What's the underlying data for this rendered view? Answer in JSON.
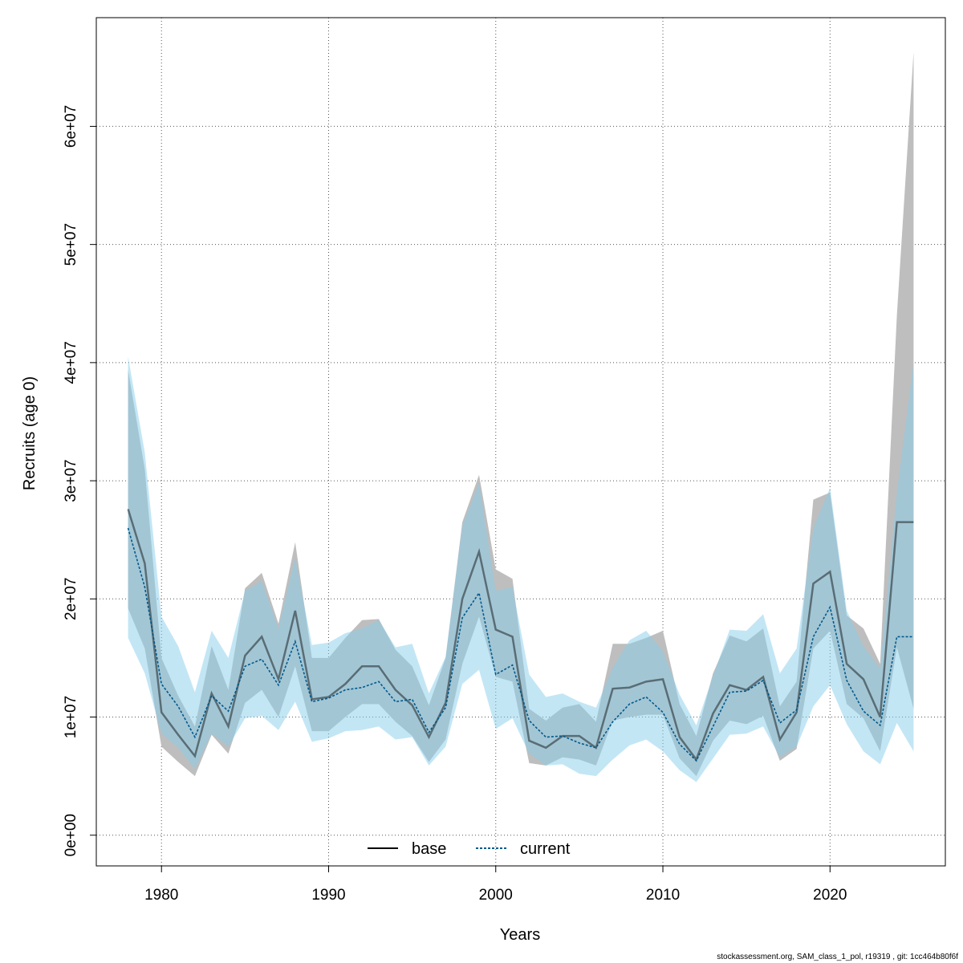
{
  "chart_data": {
    "type": "line",
    "xlabel": "Years",
    "ylabel": "Recruits (age 0)",
    "xlim": [
      1974.1,
      1977.9
    ],
    "xlim_note": "",
    "x_range": [
      1976.1,
      2026.9
    ],
    "y_range": [
      -2600000,
      69200000
    ],
    "x_ticks": [
      1980,
      1990,
      2000,
      2010,
      2020
    ],
    "y_ticks": [
      0,
      10000000,
      20000000,
      30000000,
      40000000,
      50000000,
      60000000
    ],
    "y_tick_labels": [
      "0e+00",
      "1e+07",
      "2e+07",
      "3e+07",
      "4e+07",
      "5e+07",
      "6e+07"
    ],
    "grid": true,
    "legend_position": "bottom",
    "x": [
      1978,
      1979,
      1980,
      1981,
      1982,
      1983,
      1984,
      1985,
      1986,
      1987,
      1988,
      1989,
      1990,
      1991,
      1992,
      1993,
      1994,
      1995,
      1996,
      1997,
      1998,
      1999,
      2000,
      2001,
      2002,
      2003,
      2004,
      2005,
      2006,
      2007,
      2008,
      2009,
      2010,
      2011,
      2012,
      2013,
      2014,
      2015,
      2016,
      2017,
      2018,
      2019,
      2020,
      2021,
      2022,
      2023,
      2024,
      2025
    ],
    "series": [
      {
        "name": "base",
        "color": "#000000",
        "band_color": "#bebebe",
        "dash": "solid",
        "values": [
          27600000,
          23000000,
          10400000,
          8500000,
          6700000,
          12000000,
          9200000,
          15200000,
          16800000,
          13200000,
          19000000,
          11500000,
          11700000,
          12800000,
          14300000,
          14300000,
          12300000,
          11000000,
          8300000,
          11200000,
          20000000,
          24000000,
          17400000,
          16800000,
          8000000,
          7400000,
          8400000,
          8400000,
          7400000,
          12400000,
          12500000,
          13000000,
          13200000,
          8300000,
          6400000,
          10300000,
          12700000,
          12300000,
          13400000,
          8100000,
          10400000,
          21300000,
          22300000,
          14500000,
          13200000,
          10000000,
          26500000,
          26500000
        ],
        "lower": [
          19200000,
          15800000,
          7500000,
          6200000,
          5000000,
          8500000,
          6900000,
          11200000,
          12300000,
          10000000,
          14300000,
          8800000,
          8800000,
          10000000,
          11100000,
          11100000,
          9600000,
          8400000,
          6200000,
          8100000,
          14500000,
          18500000,
          13400000,
          13000000,
          6100000,
          5900000,
          6600000,
          6400000,
          5900000,
          9700000,
          10000000,
          10200000,
          10200000,
          6500000,
          5000000,
          8000000,
          9700000,
          9400000,
          10100000,
          6300000,
          7300000,
          15800000,
          17300000,
          11100000,
          9900000,
          7100000,
          15900000,
          10700000
        ],
        "upper": [
          39400000,
          31000000,
          15000000,
          11800000,
          9200000,
          16000000,
          12300000,
          20900000,
          22200000,
          17900000,
          24800000,
          15000000,
          15000000,
          16700000,
          18200000,
          18300000,
          15700000,
          14300000,
          11000000,
          15000000,
          26500000,
          30500000,
          22500000,
          21700000,
          10700000,
          9700000,
          10800000,
          11100000,
          9600000,
          16200000,
          16200000,
          16700000,
          17300000,
          11100000,
          8400000,
          13700000,
          16900000,
          16400000,
          17500000,
          10900000,
          13000000,
          28400000,
          29000000,
          18600000,
          17500000,
          14500000,
          44000000,
          66300000
        ]
      },
      {
        "name": "current",
        "color": "#005a8c",
        "band_color": "#87ceeb",
        "dash": "dotted",
        "values": [
          26000000,
          21000000,
          12800000,
          10900000,
          8300000,
          11800000,
          10500000,
          14300000,
          14900000,
          12700000,
          16400000,
          11300000,
          11600000,
          12300000,
          12500000,
          13000000,
          11300000,
          11500000,
          8700000,
          10800000,
          18400000,
          20500000,
          13600000,
          14400000,
          9700000,
          8300000,
          8400000,
          7800000,
          7400000,
          9600000,
          11100000,
          11700000,
          10400000,
          7700000,
          6300000,
          9200000,
          12100000,
          12200000,
          13100000,
          9500000,
          10600000,
          16800000,
          19300000,
          13100000,
          10500000,
          9300000,
          16800000,
          16800000
        ],
        "lower": [
          16700000,
          13700000,
          8600000,
          7400000,
          5600000,
          8600000,
          7500000,
          9900000,
          10100000,
          8900000,
          11300000,
          7900000,
          8200000,
          8800000,
          8900000,
          9200000,
          8100000,
          8300000,
          5900000,
          7500000,
          12800000,
          14000000,
          9000000,
          9900000,
          6900000,
          5900000,
          6000000,
          5200000,
          5000000,
          6400000,
          7600000,
          8100000,
          7100000,
          5500000,
          4500000,
          6500000,
          8500000,
          8600000,
          9200000,
          6600000,
          7500000,
          10900000,
          12700000,
          9400000,
          7100000,
          6000000,
          9500000,
          7100000
        ],
        "upper": [
          40500000,
          32400000,
          18500000,
          16000000,
          12100000,
          17300000,
          15000000,
          20700000,
          21500000,
          17500000,
          23500000,
          16100000,
          16300000,
          17100000,
          17500000,
          18200000,
          15900000,
          16200000,
          12000000,
          15100000,
          26200000,
          29800000,
          20700000,
          21000000,
          13600000,
          11700000,
          12000000,
          11300000,
          10800000,
          14200000,
          16500000,
          17300000,
          15600000,
          11900000,
          9300000,
          13500000,
          17400000,
          17300000,
          18700000,
          13700000,
          15800000,
          26000000,
          29400000,
          19000000,
          16000000,
          14100000,
          29000000,
          40000000
        ]
      }
    ]
  },
  "footer": {
    "text": "stockassessment.org, SAM_class_1_pol, r19319 , git: 1cc464b80f6f"
  }
}
